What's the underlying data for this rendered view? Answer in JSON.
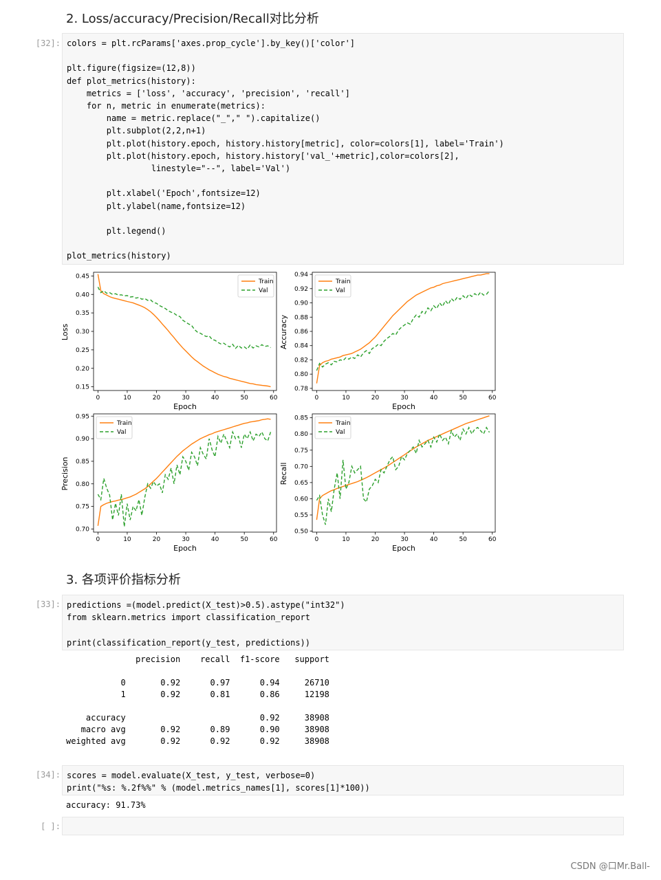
{
  "sections": {
    "s2_title": "2. Loss/accuracy/Precision/Recall对比分析",
    "s3_title": "3. 各项评价指标分析"
  },
  "cells": {
    "c32": {
      "prompt": "[32]:",
      "code": "colors = plt.rcParams['axes.prop_cycle'].by_key()['color']\n\nplt.figure(figsize=(12,8))\ndef plot_metrics(history):\n    metrics = ['loss', 'accuracy', 'precision', 'recall']\n    for n, metric in enumerate(metrics):\n        name = metric.replace(\"_\",\" \").capitalize()\n        plt.subplot(2,2,n+1)\n        plt.plot(history.epoch, history.history[metric], color=colors[1], label='Train')\n        plt.plot(history.epoch, history.history['val_'+metric],color=colors[2],\n                 linestyle=\"--\", label='Val')\n\n        plt.xlabel('Epoch',fontsize=12)\n        plt.ylabel(name,fontsize=12)\n\n        plt.legend()\n\nplot_metrics(history)"
    },
    "c33": {
      "prompt": "[33]:",
      "code": "predictions =(model.predict(X_test)>0.5).astype(\"int32\")\nfrom sklearn.metrics import classification_report\n\nprint(classification_report(y_test, predictions))",
      "output": "              precision    recall  f1-score   support\n\n           0       0.92      0.97      0.94     26710\n           1       0.92      0.81      0.86     12198\n\n    accuracy                           0.92     38908\n   macro avg       0.92      0.89      0.90     38908\nweighted avg       0.92      0.92      0.92     38908"
    },
    "c34": {
      "prompt": "[34]:",
      "code": "scores = model.evaluate(X_test, y_test, verbose=0)\nprint(\"%s: %.2f%%\" % (model.metrics_names[1], scores[1]*100))",
      "output": "accuracy: 91.73%"
    },
    "cempty": {
      "prompt": "[ ]:"
    }
  },
  "watermark": "CSDN @口Mr.Ball-",
  "chart_data": [
    {
      "type": "line",
      "title": "",
      "xlabel": "Epoch",
      "ylabel": "Loss",
      "xlim": [
        -1.5,
        61
      ],
      "ylim": [
        0.14,
        0.46
      ],
      "xticks": [
        0,
        10,
        20,
        30,
        40,
        50,
        60
      ],
      "yticks": [
        0.15,
        0.2,
        0.25,
        0.3,
        0.35,
        0.4,
        0.45
      ],
      "legend": "upper right",
      "series": [
        {
          "name": "Train",
          "color": "#ff7f0e",
          "style": "solid",
          "values": [
            0.455,
            0.41,
            0.402,
            0.398,
            0.394,
            0.391,
            0.389,
            0.387,
            0.385,
            0.383,
            0.381,
            0.379,
            0.377,
            0.374,
            0.371,
            0.368,
            0.364,
            0.359,
            0.353,
            0.346,
            0.338,
            0.329,
            0.32,
            0.311,
            0.302,
            0.292,
            0.283,
            0.273,
            0.264,
            0.255,
            0.247,
            0.239,
            0.231,
            0.224,
            0.218,
            0.212,
            0.206,
            0.201,
            0.196,
            0.192,
            0.188,
            0.184,
            0.181,
            0.178,
            0.176,
            0.173,
            0.171,
            0.169,
            0.167,
            0.165,
            0.163,
            0.161,
            0.159,
            0.158,
            0.156,
            0.155,
            0.154,
            0.153,
            0.152,
            0.15
          ]
        },
        {
          "name": "Val",
          "color": "#2ca02c",
          "style": "dashed",
          "values": [
            0.42,
            0.405,
            0.41,
            0.403,
            0.405,
            0.4,
            0.402,
            0.398,
            0.399,
            0.396,
            0.397,
            0.393,
            0.394,
            0.39,
            0.392,
            0.387,
            0.389,
            0.384,
            0.385,
            0.378,
            0.376,
            0.37,
            0.366,
            0.362,
            0.356,
            0.352,
            0.349,
            0.343,
            0.34,
            0.33,
            0.325,
            0.32,
            0.316,
            0.305,
            0.298,
            0.295,
            0.29,
            0.286,
            0.288,
            0.278,
            0.276,
            0.27,
            0.266,
            0.268,
            0.262,
            0.258,
            0.265,
            0.254,
            0.262,
            0.255,
            0.258,
            0.252,
            0.263,
            0.255,
            0.261,
            0.258,
            0.264,
            0.259,
            0.261,
            0.256
          ]
        }
      ]
    },
    {
      "type": "line",
      "title": "",
      "xlabel": "Epoch",
      "ylabel": "Accuracy",
      "xlim": [
        -1.5,
        61
      ],
      "ylim": [
        0.777,
        0.943
      ],
      "xticks": [
        0,
        10,
        20,
        30,
        40,
        50,
        60
      ],
      "yticks": [
        0.78,
        0.8,
        0.82,
        0.84,
        0.86,
        0.88,
        0.9,
        0.92,
        0.94
      ],
      "legend": "upper left",
      "series": [
        {
          "name": "Train",
          "color": "#ff7f0e",
          "style": "solid",
          "values": [
            0.787,
            0.812,
            0.816,
            0.818,
            0.819,
            0.821,
            0.822,
            0.823,
            0.824,
            0.826,
            0.827,
            0.828,
            0.829,
            0.831,
            0.833,
            0.835,
            0.838,
            0.841,
            0.844,
            0.848,
            0.852,
            0.857,
            0.862,
            0.867,
            0.872,
            0.877,
            0.882,
            0.886,
            0.89,
            0.894,
            0.898,
            0.902,
            0.905,
            0.908,
            0.911,
            0.913,
            0.915,
            0.917,
            0.919,
            0.921,
            0.922,
            0.924,
            0.925,
            0.927,
            0.928,
            0.929,
            0.93,
            0.931,
            0.932,
            0.933,
            0.934,
            0.935,
            0.936,
            0.937,
            0.938,
            0.939,
            0.939,
            0.94,
            0.941,
            0.941
          ]
        },
        {
          "name": "Val",
          "color": "#2ca02c",
          "style": "dashed",
          "values": [
            0.805,
            0.815,
            0.81,
            0.814,
            0.816,
            0.813,
            0.818,
            0.817,
            0.82,
            0.819,
            0.823,
            0.821,
            0.824,
            0.822,
            0.827,
            0.824,
            0.83,
            0.833,
            0.829,
            0.836,
            0.838,
            0.842,
            0.84,
            0.846,
            0.85,
            0.853,
            0.857,
            0.855,
            0.862,
            0.866,
            0.869,
            0.872,
            0.87,
            0.878,
            0.883,
            0.88,
            0.888,
            0.885,
            0.893,
            0.889,
            0.896,
            0.892,
            0.9,
            0.895,
            0.903,
            0.898,
            0.906,
            0.902,
            0.908,
            0.905,
            0.91,
            0.906,
            0.912,
            0.909,
            0.913,
            0.91,
            0.915,
            0.911,
            0.912,
            0.917
          ]
        }
      ]
    },
    {
      "type": "line",
      "title": "",
      "xlabel": "Epoch",
      "ylabel": "Precision",
      "xlim": [
        -1.5,
        61
      ],
      "ylim": [
        0.693,
        0.955
      ],
      "xticks": [
        0,
        10,
        20,
        30,
        40,
        50,
        60
      ],
      "yticks": [
        0.7,
        0.75,
        0.8,
        0.85,
        0.9,
        0.95
      ],
      "legend": "upper left",
      "series": [
        {
          "name": "Train",
          "color": "#ff7f0e",
          "style": "solid",
          "values": [
            0.707,
            0.75,
            0.754,
            0.757,
            0.759,
            0.761,
            0.762,
            0.764,
            0.765,
            0.767,
            0.769,
            0.771,
            0.774,
            0.777,
            0.781,
            0.785,
            0.789,
            0.794,
            0.8,
            0.806,
            0.812,
            0.819,
            0.826,
            0.833,
            0.84,
            0.847,
            0.854,
            0.861,
            0.867,
            0.873,
            0.878,
            0.883,
            0.888,
            0.892,
            0.896,
            0.9,
            0.903,
            0.906,
            0.909,
            0.911,
            0.914,
            0.916,
            0.918,
            0.92,
            0.922,
            0.924,
            0.926,
            0.928,
            0.93,
            0.932,
            0.934,
            0.935,
            0.937,
            0.938,
            0.939,
            0.94,
            0.942,
            0.943,
            0.944,
            0.943
          ]
        },
        {
          "name": "Val",
          "color": "#2ca02c",
          "style": "dashed",
          "values": [
            0.777,
            0.765,
            0.812,
            0.79,
            0.775,
            0.72,
            0.757,
            0.73,
            0.777,
            0.705,
            0.756,
            0.72,
            0.75,
            0.74,
            0.765,
            0.73,
            0.77,
            0.8,
            0.79,
            0.805,
            0.795,
            0.8,
            0.78,
            0.82,
            0.81,
            0.835,
            0.8,
            0.842,
            0.82,
            0.86,
            0.85,
            0.83,
            0.87,
            0.86,
            0.84,
            0.88,
            0.865,
            0.855,
            0.9,
            0.875,
            0.86,
            0.905,
            0.89,
            0.91,
            0.895,
            0.88,
            0.915,
            0.9,
            0.905,
            0.88,
            0.91,
            0.9,
            0.915,
            0.895,
            0.91,
            0.905,
            0.915,
            0.9,
            0.895,
            0.915
          ]
        }
      ]
    },
    {
      "type": "line",
      "title": "",
      "xlabel": "Epoch",
      "ylabel": "Recall",
      "xlim": [
        -1.5,
        61
      ],
      "ylim": [
        0.497,
        0.862
      ],
      "xticks": [
        0,
        10,
        20,
        30,
        40,
        50,
        60
      ],
      "yticks": [
        0.5,
        0.55,
        0.6,
        0.65,
        0.7,
        0.75,
        0.8,
        0.85
      ],
      "legend": "upper left",
      "series": [
        {
          "name": "Train",
          "color": "#ff7f0e",
          "style": "solid",
          "values": [
            0.535,
            0.6,
            0.61,
            0.615,
            0.62,
            0.625,
            0.628,
            0.632,
            0.635,
            0.638,
            0.641,
            0.644,
            0.647,
            0.65,
            0.653,
            0.657,
            0.661,
            0.665,
            0.67,
            0.675,
            0.68,
            0.685,
            0.69,
            0.695,
            0.7,
            0.706,
            0.712,
            0.718,
            0.724,
            0.73,
            0.736,
            0.742,
            0.748,
            0.754,
            0.76,
            0.765,
            0.77,
            0.775,
            0.78,
            0.784,
            0.788,
            0.792,
            0.796,
            0.8,
            0.804,
            0.808,
            0.812,
            0.816,
            0.82,
            0.824,
            0.828,
            0.832,
            0.835,
            0.838,
            0.841,
            0.844,
            0.847,
            0.85,
            0.853,
            0.856
          ]
        },
        {
          "name": "Val",
          "color": "#2ca02c",
          "style": "dashed",
          "values": [
            0.595,
            0.61,
            0.55,
            0.52,
            0.6,
            0.56,
            0.63,
            0.68,
            0.6,
            0.72,
            0.63,
            0.65,
            0.7,
            0.68,
            0.69,
            0.7,
            0.6,
            0.59,
            0.63,
            0.64,
            0.66,
            0.65,
            0.69,
            0.68,
            0.7,
            0.72,
            0.73,
            0.69,
            0.7,
            0.73,
            0.72,
            0.74,
            0.75,
            0.76,
            0.74,
            0.78,
            0.76,
            0.77,
            0.78,
            0.76,
            0.79,
            0.775,
            0.8,
            0.78,
            0.79,
            0.77,
            0.81,
            0.79,
            0.8,
            0.78,
            0.815,
            0.8,
            0.82,
            0.8,
            0.815,
            0.82,
            0.81,
            0.8,
            0.82,
            0.805
          ]
        }
      ]
    }
  ]
}
